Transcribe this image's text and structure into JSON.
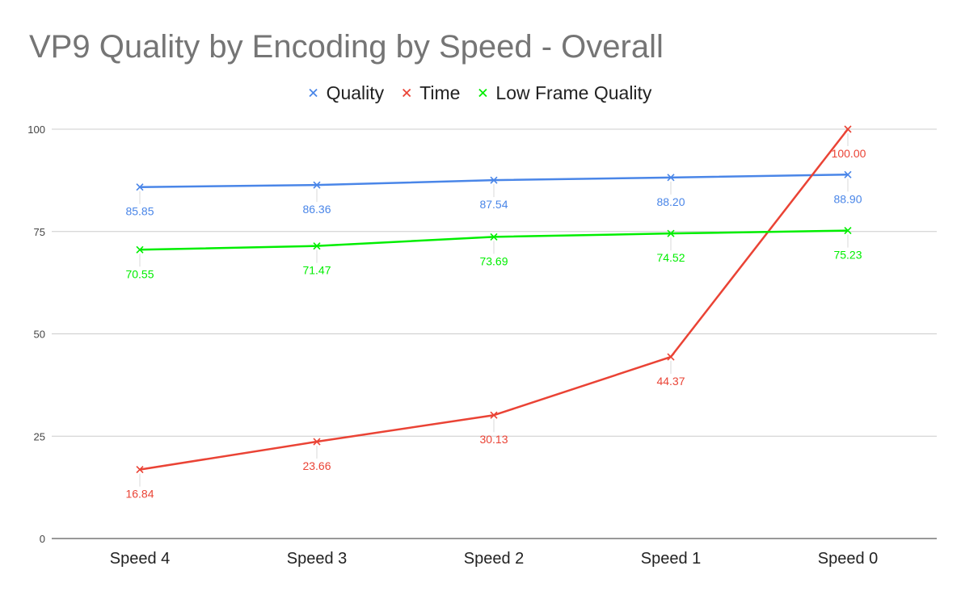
{
  "chart_data": {
    "type": "line",
    "title": "VP9 Quality by Encoding by Speed - Overall",
    "xlabel": "",
    "ylabel": "",
    "categories": [
      "Speed 4",
      "Speed 3",
      "Speed 2",
      "Speed 1",
      "Speed 0"
    ],
    "ylim": [
      0,
      100
    ],
    "yticks": [
      0,
      25,
      50,
      75,
      100
    ],
    "grid": true,
    "legend_position": "top",
    "marker": "x",
    "series": [
      {
        "name": "Quality",
        "color": "#4a86e8",
        "values": [
          85.85,
          86.36,
          87.54,
          88.2,
          88.9
        ],
        "labels": [
          "85.85",
          "86.36",
          "87.54",
          "88.20",
          "88.90"
        ]
      },
      {
        "name": "Time",
        "color": "#ea4335",
        "values": [
          16.84,
          23.66,
          30.13,
          44.37,
          100.0
        ],
        "labels": [
          "16.84",
          "23.66",
          "30.13",
          "44.37",
          "100.00"
        ]
      },
      {
        "name": "Low Frame Quality",
        "color": "#00ee00",
        "values": [
          70.55,
          71.47,
          73.69,
          74.52,
          75.23
        ],
        "labels": [
          "70.55",
          "71.47",
          "73.69",
          "74.52",
          "75.23"
        ]
      }
    ]
  }
}
